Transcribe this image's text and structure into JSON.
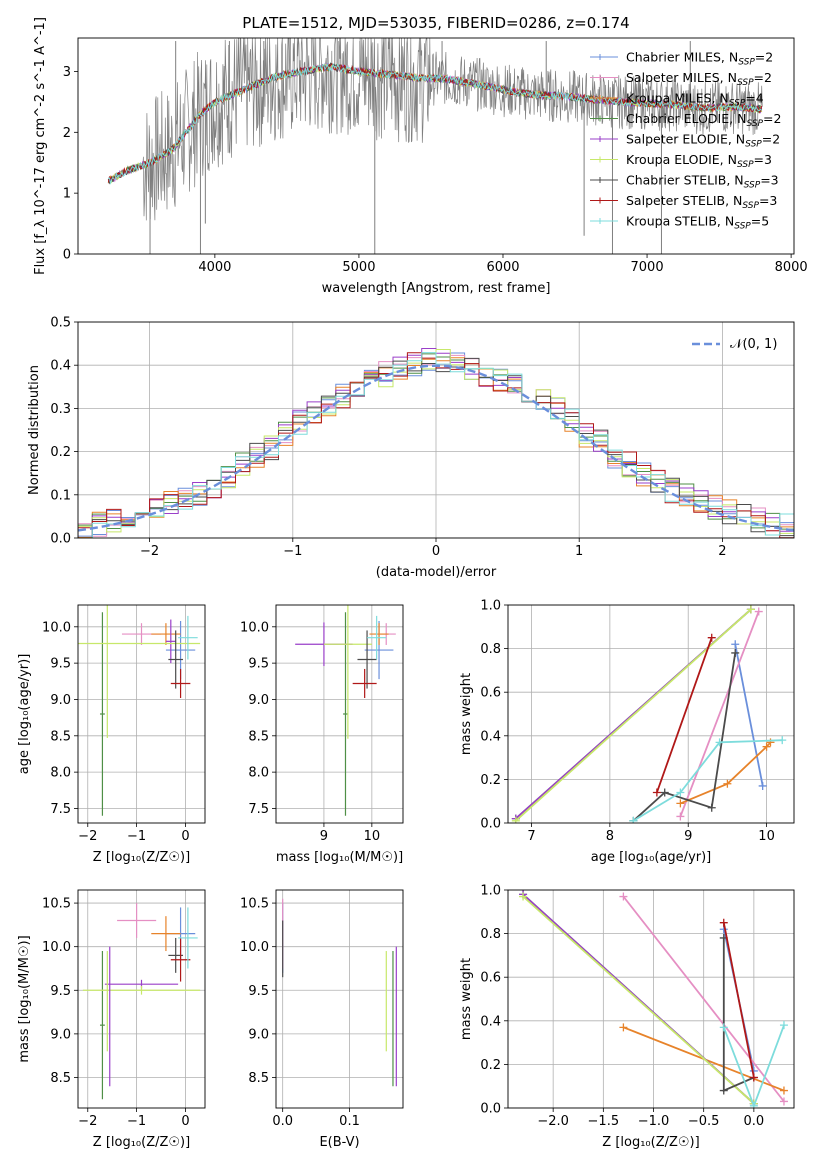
{
  "title": "PLATE=1512, MJD=53035, FIBERID=0286, z=0.174",
  "colors": {
    "chabrier_miles": "#6a8fdb",
    "salpeter_miles": "#e58fc3",
    "kroupa_miles": "#e7832a",
    "chabrier_elodie": "#4f8f46",
    "salpeter_elodie": "#9a3fc9",
    "kroupa_elodie": "#c7e86a",
    "chabrier_stelib": "#4b4b4b",
    "salpeter_stelib": "#b01818",
    "kroupa_stelib": "#7ddcdc",
    "data": "#7f7f7f"
  },
  "chart_data": [
    {
      "type": "line",
      "panel": "spectrum",
      "xlabel": "wavelength [Angstrom, rest frame]",
      "ylabel": "Flux [f_λ 10^-17 erg cm^-2 s^-1 A^-1]",
      "xlim": [
        3050,
        8020
      ],
      "ylim": [
        0,
        3.55
      ],
      "xticks": [
        "4000",
        "5000",
        "6000",
        "7000",
        "8000"
      ],
      "yticks": [
        "0",
        "1",
        "2",
        "3"
      ],
      "legend_position": "top-right",
      "legend": [
        {
          "label": "Chabrier MILES, N",
          "sub": "SSP",
          "suffix": "=2",
          "color_key": "chabrier_miles"
        },
        {
          "label": "Salpeter MILES, N",
          "sub": "SSP",
          "suffix": "=2",
          "color_key": "salpeter_miles"
        },
        {
          "label": "Kroupa MILES, N",
          "sub": "SSP",
          "suffix": "=4",
          "color_key": "kroupa_miles"
        },
        {
          "label": "Chabrier ELODIE, N",
          "sub": "SSP",
          "suffix": "=2",
          "color_key": "chabrier_elodie"
        },
        {
          "label": "Salpeter ELODIE, N",
          "sub": "SSP",
          "suffix": "=2",
          "color_key": "salpeter_elodie"
        },
        {
          "label": "Kroupa ELODIE, N",
          "sub": "SSP",
          "suffix": "=3",
          "color_key": "kroupa_elodie"
        },
        {
          "label": "Chabrier STELIB, N",
          "sub": "SSP",
          "suffix": "=3",
          "color_key": "chabrier_stelib"
        },
        {
          "label": "Salpeter STELIB, N",
          "sub": "SSP",
          "suffix": "=3",
          "color_key": "salpeter_stelib"
        },
        {
          "label": "Kroupa STELIB, N",
          "sub": "SSP",
          "suffix": "=5",
          "color_key": "kroupa_stelib"
        }
      ],
      "model_continuum": {
        "x": [
          3260,
          3400,
          3550,
          3700,
          3800,
          3900,
          4000,
          4200,
          4400,
          4600,
          4800,
          5000,
          5200,
          5400,
          5600,
          5800,
          6000,
          6200,
          6400,
          6600,
          6800,
          7000,
          7200,
          7400,
          7600,
          7800
        ],
        "y": [
          1.2,
          1.38,
          1.5,
          1.7,
          2.0,
          2.3,
          2.5,
          2.7,
          2.9,
          3.0,
          3.08,
          3.0,
          2.95,
          2.9,
          2.88,
          2.8,
          2.7,
          2.62,
          2.6,
          2.55,
          2.5,
          2.48,
          2.45,
          2.4,
          2.42,
          2.38
        ]
      },
      "data_range": [
        3500,
        7800
      ],
      "spikes": [
        {
          "x": 3550,
          "y": 0
        },
        {
          "x": 3728,
          "y": 3.5
        },
        {
          "x": 3900,
          "y": 0
        },
        {
          "x": 3934,
          "y": 0.5
        },
        {
          "x": 4101,
          "y": 3.5
        },
        {
          "x": 4340,
          "y": 3.5
        },
        {
          "x": 4861,
          "y": 3.5
        },
        {
          "x": 5007,
          "y": 3.5
        },
        {
          "x": 5110,
          "y": 0
        },
        {
          "x": 5577,
          "y": 3.5
        },
        {
          "x": 6300,
          "y": 3.5
        },
        {
          "x": 6563,
          "y": 0.3
        },
        {
          "x": 6760,
          "y": 0
        },
        {
          "x": 7100,
          "y": 0
        },
        {
          "x": 7300,
          "y": 3.5
        }
      ]
    },
    {
      "type": "bar",
      "panel": "residual_histogram",
      "xlabel": "(data-model)/error",
      "ylabel": "Normed distribution",
      "xlim": [
        -2.5,
        2.5
      ],
      "ylim": [
        0,
        0.5
      ],
      "xticks": [
        "−2",
        "−1",
        "0",
        "1",
        "2"
      ],
      "yticks": [
        "0.0",
        "0.1",
        "0.2",
        "0.3",
        "0.4",
        "0.5"
      ],
      "legend_position": "top-right",
      "reference_curve": {
        "label": "𝒩(0, 1)",
        "color_key": "chabrier_miles"
      },
      "bin_edges": [
        -2.5,
        -2.4,
        -2.3,
        -2.2,
        -2.1,
        -2.0,
        -1.9,
        -1.8,
        -1.7,
        -1.6,
        -1.5,
        -1.4,
        -1.3,
        -1.2,
        -1.1,
        -1.0,
        -0.9,
        -0.8,
        -0.7,
        -0.6,
        -0.5,
        -0.4,
        -0.3,
        -0.2,
        -0.1,
        0.0,
        0.1,
        0.2,
        0.3,
        0.4,
        0.5,
        0.6,
        0.7,
        0.8,
        0.9,
        1.0,
        1.1,
        1.2,
        1.3,
        1.4,
        1.5,
        1.6,
        1.7,
        1.8,
        1.9,
        2.0,
        2.1,
        2.2,
        2.3,
        2.4,
        2.5
      ],
      "series_values": [
        0.02,
        0.03,
        0.04,
        0.05,
        0.06,
        0.07,
        0.08,
        0.09,
        0.1,
        0.12,
        0.14,
        0.17,
        0.19,
        0.21,
        0.24,
        0.27,
        0.29,
        0.31,
        0.33,
        0.35,
        0.37,
        0.38,
        0.39,
        0.4,
        0.41,
        0.41,
        0.4,
        0.39,
        0.38,
        0.37,
        0.36,
        0.34,
        0.32,
        0.3,
        0.27,
        0.24,
        0.22,
        0.19,
        0.17,
        0.15,
        0.13,
        0.11,
        0.1,
        0.08,
        0.07,
        0.06,
        0.05,
        0.04,
        0.03,
        0.03
      ]
    },
    {
      "type": "scatter",
      "panel": "age_vs_Z",
      "xlabel": "Z [log₁₀(Z/Z☉)]",
      "ylabel": "age  [log₁₀(age/yr)]",
      "xlim": [
        -2.2,
        0.4
      ],
      "ylim": [
        7.3,
        10.3
      ],
      "xticks": [
        "−2",
        "−1",
        "0"
      ],
      "yticks": [
        "7.5",
        "8.0",
        "8.5",
        "9.0",
        "9.5",
        "10.0"
      ],
      "points": [
        {
          "key": "chabrier_miles",
          "x": -0.1,
          "y": 9.68,
          "xerr": 0.3,
          "yerr": 0.4
        },
        {
          "key": "salpeter_miles",
          "x": -0.9,
          "y": 9.9,
          "xerr": 0.4,
          "yerr": 0.15
        },
        {
          "key": "kroupa_miles",
          "x": -0.4,
          "y": 9.9,
          "xerr": 0.3,
          "yerr": 0.15
        },
        {
          "key": "chabrier_elodie",
          "x": -1.7,
          "y": 8.8,
          "xerr": 0.05,
          "yerr": 1.4
        },
        {
          "key": "salpeter_elodie",
          "x": -0.3,
          "y": 9.8,
          "xerr": 0.1,
          "yerr": 0.3
        },
        {
          "key": "kroupa_elodie",
          "x": -1.6,
          "y": 9.77,
          "xerr": 1.9,
          "yerr": 1.3
        },
        {
          "key": "chabrier_stelib",
          "x": -0.2,
          "y": 9.55,
          "xerr": 0.15,
          "yerr": 0.4
        },
        {
          "key": "salpeter_stelib",
          "x": -0.1,
          "y": 9.22,
          "xerr": 0.2,
          "yerr": 0.2
        },
        {
          "key": "kroupa_stelib",
          "x": 0.05,
          "y": 9.85,
          "xerr": 0.2,
          "yerr": 0.3
        }
      ]
    },
    {
      "type": "scatter",
      "panel": "age_vs_mass",
      "xlabel": "mass [log₁₀(M/M☉)]",
      "ylabel": "",
      "xlim": [
        8.0,
        10.65
      ],
      "ylim": [
        7.3,
        10.3
      ],
      "xticks": [
        "9",
        "10"
      ],
      "yticks": [
        "7.5",
        "8.0",
        "8.5",
        "9.0",
        "9.5",
        "10.0"
      ],
      "points": [
        {
          "key": "chabrier_miles",
          "x": 10.15,
          "y": 9.68,
          "xerr": 0.3,
          "yerr": 0.4
        },
        {
          "key": "salpeter_miles",
          "x": 10.3,
          "y": 9.9,
          "xerr": 0.2,
          "yerr": 0.15
        },
        {
          "key": "kroupa_miles",
          "x": 10.15,
          "y": 9.9,
          "xerr": 0.2,
          "yerr": 0.15
        },
        {
          "key": "chabrier_elodie",
          "x": 9.45,
          "y": 8.8,
          "xerr": 0.05,
          "yerr": 1.4
        },
        {
          "key": "salpeter_elodie",
          "x": 9.0,
          "y": 9.76,
          "xerr": 0.6,
          "yerr": 0.3
        },
        {
          "key": "kroupa_elodie",
          "x": 9.5,
          "y": 9.76,
          "xerr": 0.5,
          "yerr": 1.3
        },
        {
          "key": "chabrier_stelib",
          "x": 9.9,
          "y": 9.55,
          "xerr": 0.2,
          "yerr": 0.4
        },
        {
          "key": "salpeter_stelib",
          "x": 9.85,
          "y": 9.22,
          "xerr": 0.25,
          "yerr": 0.2
        },
        {
          "key": "kroupa_stelib",
          "x": 10.1,
          "y": 9.85,
          "xerr": 0.2,
          "yerr": 0.3
        }
      ]
    },
    {
      "type": "line",
      "panel": "mass_weight_vs_age",
      "xlabel": "age  [log₁₀(age/yr)]",
      "ylabel": "mass weight",
      "xlim": [
        6.7,
        10.35
      ],
      "ylim": [
        0,
        1.0
      ],
      "xticks": [
        "7",
        "8",
        "9",
        "10"
      ],
      "yticks": [
        "0.0",
        "0.2",
        "0.4",
        "0.6",
        "0.8",
        "1.0"
      ],
      "series": [
        {
          "key": "chabrier_miles",
          "x": [
            9.95,
            9.6
          ],
          "y": [
            0.17,
            0.82
          ]
        },
        {
          "key": "salpeter_miles",
          "x": [
            8.9,
            9.9
          ],
          "y": [
            0.03,
            0.97
          ]
        },
        {
          "key": "kroupa_miles",
          "x": [
            8.9,
            9.5,
            10.0,
            10.05
          ],
          "y": [
            0.09,
            0.18,
            0.35,
            0.37
          ]
        },
        {
          "key": "chabrier_elodie",
          "x": [
            6.8,
            9.8
          ],
          "y": [
            0.02,
            0.98
          ]
        },
        {
          "key": "salpeter_elodie",
          "x": [
            6.8,
            9.8
          ],
          "y": [
            0.02,
            0.98
          ]
        },
        {
          "key": "kroupa_elodie",
          "x": [
            6.8,
            9.8
          ],
          "y": [
            0.01,
            0.98
          ]
        },
        {
          "key": "chabrier_stelib",
          "x": [
            8.3,
            8.7,
            9.3,
            9.6
          ],
          "y": [
            0.01,
            0.14,
            0.07,
            0.78
          ]
        },
        {
          "key": "salpeter_stelib",
          "x": [
            8.6,
            9.3
          ],
          "y": [
            0.14,
            0.85
          ]
        },
        {
          "key": "kroupa_stelib",
          "x": [
            8.3,
            8.9,
            9.4,
            10.2
          ],
          "y": [
            0.01,
            0.14,
            0.37,
            0.38
          ]
        }
      ]
    },
    {
      "type": "scatter",
      "panel": "mass_vs_Z",
      "xlabel": "Z [log₁₀(Z/Z☉)]",
      "ylabel": "mass [log₁₀(M/M☉)]",
      "xlim": [
        -2.2,
        0.4
      ],
      "ylim": [
        8.15,
        10.65
      ],
      "xticks": [
        "−2",
        "−1",
        "0"
      ],
      "yticks": [
        "8.5",
        "9.0",
        "9.5",
        "10.0",
        "10.5"
      ],
      "points": [
        {
          "key": "chabrier_miles",
          "x": -0.1,
          "y": 10.15,
          "xerr": 0.3,
          "yerr": 0.3
        },
        {
          "key": "salpeter_miles",
          "x": -1.0,
          "y": 10.3,
          "xerr": 0.4,
          "yerr": 0.2
        },
        {
          "key": "kroupa_miles",
          "x": -0.4,
          "y": 10.15,
          "xerr": 0.3,
          "yerr": 0.2
        },
        {
          "key": "chabrier_elodie",
          "x": -1.7,
          "y": 9.1,
          "xerr": 0.05,
          "yerr": 0.85
        },
        {
          "key": "salpeter_elodie",
          "x": -0.9,
          "y": 9.57,
          "xerr": 0.75,
          "yerr": 0.05
        },
        {
          "key": "kroupa_elodie",
          "x": -0.9,
          "y": 9.5,
          "xerr": 1.2,
          "yerr": 0.05
        },
        {
          "key": "chabrier_stelib",
          "x": -0.2,
          "y": 9.9,
          "xerr": 0.15,
          "yerr": 0.2
        },
        {
          "key": "salpeter_stelib",
          "x": -0.1,
          "y": 9.85,
          "xerr": 0.2,
          "yerr": 0.25
        },
        {
          "key": "kroupa_stelib",
          "x": 0.05,
          "y": 10.1,
          "xerr": 0.2,
          "yerr": 0.35
        }
      ],
      "vertical_bars": [
        {
          "key": "salpeter_elodie",
          "x": -1.55,
          "y": [
            8.4,
            10.0
          ]
        },
        {
          "key": "kroupa_elodie",
          "x": -1.6,
          "y": [
            8.8,
            9.95
          ]
        }
      ]
    },
    {
      "type": "scatter",
      "panel": "mass_vs_EBV",
      "xlabel": "E(B-V)",
      "ylabel": "",
      "xlim": [
        -0.01,
        0.18
      ],
      "ylim": [
        8.15,
        10.65
      ],
      "xticks": [
        "0.0",
        "0.1"
      ],
      "yticks": [
        "8.5",
        "9.0",
        "9.5",
        "10.0",
        "10.5"
      ],
      "vertical_bars": [
        {
          "key": "chabrier_miles",
          "x": 0.0,
          "y": [
            9.7,
            10.5
          ]
        },
        {
          "key": "salpeter_miles",
          "x": 0.0,
          "y": [
            9.75,
            10.55
          ]
        },
        {
          "key": "chabrier_stelib",
          "x": 0.0,
          "y": [
            9.65,
            10.3
          ]
        },
        {
          "key": "kroupa_elodie",
          "x": 0.155,
          "y": [
            8.8,
            9.95
          ]
        },
        {
          "key": "chabrier_elodie",
          "x": 0.165,
          "y": [
            8.4,
            9.95
          ]
        },
        {
          "key": "salpeter_elodie",
          "x": 0.17,
          "y": [
            8.4,
            10.0
          ]
        }
      ]
    },
    {
      "type": "line",
      "panel": "mass_weight_vs_Z",
      "xlabel": "Z [log₁₀(Z/Z☉)]",
      "ylabel": "mass weight",
      "xlim": [
        -2.45,
        0.4
      ],
      "ylim": [
        0,
        1.0
      ],
      "xticks": [
        "−2.0",
        "−1.5",
        "−1.0",
        "−0.5",
        "0.0"
      ],
      "yticks": [
        "0.0",
        "0.2",
        "0.4",
        "0.6",
        "0.8",
        "1.0"
      ],
      "series": [
        {
          "key": "chabrier_miles",
          "x": [
            -0.3,
            0.0
          ],
          "y": [
            0.82,
            0.17
          ]
        },
        {
          "key": "salpeter_miles",
          "x": [
            -1.3,
            0.3
          ],
          "y": [
            0.97,
            0.03
          ]
        },
        {
          "key": "kroupa_miles",
          "x": [
            -1.3,
            0.3
          ],
          "y": [
            0.37,
            0.08
          ]
        },
        {
          "key": "chabrier_elodie",
          "x": [
            -2.3,
            0.0
          ],
          "y": [
            0.98,
            0.02
          ]
        },
        {
          "key": "salpeter_elodie",
          "x": [
            -2.3,
            0.0
          ],
          "y": [
            0.98,
            0.02
          ]
        },
        {
          "key": "kroupa_elodie",
          "x": [
            -2.3,
            0.0
          ],
          "y": [
            0.97,
            0.02
          ]
        },
        {
          "key": "chabrier_stelib",
          "x": [
            -0.3,
            -0.3,
            0.0
          ],
          "y": [
            0.78,
            0.08,
            0.14
          ]
        },
        {
          "key": "salpeter_stelib",
          "x": [
            -0.3,
            0.0
          ],
          "y": [
            0.85,
            0.14
          ]
        },
        {
          "key": "kroupa_stelib",
          "x": [
            -0.3,
            0.0,
            0.3
          ],
          "y": [
            0.37,
            0.01,
            0.38
          ]
        }
      ]
    }
  ]
}
